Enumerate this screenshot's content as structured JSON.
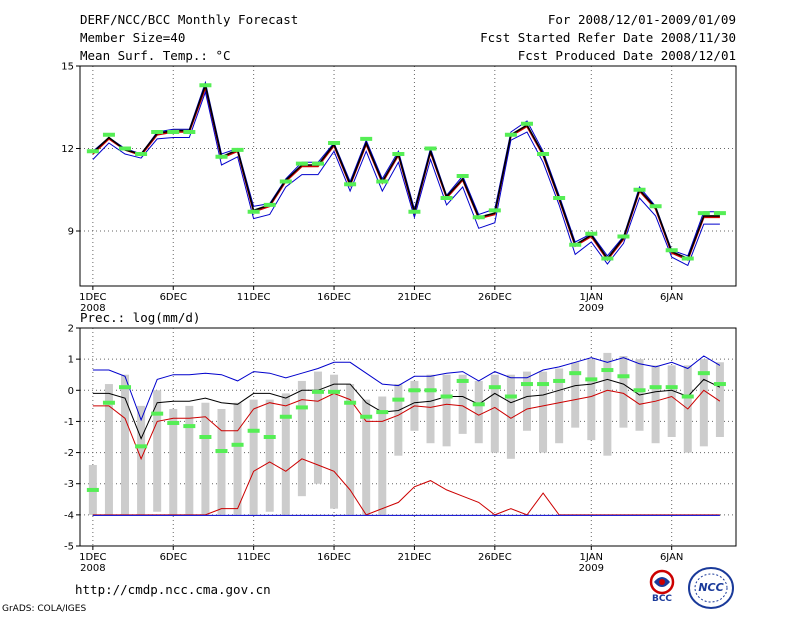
{
  "header": {
    "title": "DERF/NCC/BCC Monthly Forecast",
    "member_size": "Member Size=40",
    "variable": "Mean Surf. Temp.: °C",
    "period": "For 2008/12/01-2009/01/09",
    "started": "Fcst Started Refer Date 2008/11/30",
    "produced": "Fcst Produced Date 2008/12/01"
  },
  "lower_title": "Prec.: log(mm/d)",
  "footer": {
    "url": "http://cmdp.ncc.cma.gov.cn",
    "credit": "GrADS: COLA/IGES",
    "logo1_text": "BCC",
    "logo2_text": "NCC"
  },
  "colors": {
    "box": "#cccccc",
    "mean": "#000000",
    "upper": "#0000cc",
    "lower": "#cc0000",
    "marker": "#55ee55",
    "grid": "#666666"
  },
  "chart_data": [
    {
      "type": "line",
      "title": "Mean Surf. Temp.: °C",
      "x": [
        1,
        2,
        3,
        4,
        5,
        6,
        7,
        8,
        9,
        10,
        11,
        12,
        13,
        14,
        15,
        16,
        17,
        18,
        19,
        20,
        21,
        22,
        23,
        24,
        25,
        26,
        27,
        28,
        29,
        30,
        31,
        32,
        33,
        34,
        35,
        36,
        37,
        38,
        39,
        40
      ],
      "x_ticks": [
        1,
        6,
        11,
        16,
        21,
        26,
        32,
        37
      ],
      "x_tick_labels": [
        "1DEC",
        "6DEC",
        "11DEC",
        "16DEC",
        "21DEC",
        "26DEC",
        "1JAN",
        "6JAN"
      ],
      "x_year_labels": [
        {
          "x": 1,
          "label": "2008"
        },
        {
          "x": 32,
          "label": "2009"
        }
      ],
      "xlim": [
        0.2,
        41
      ],
      "ylim": [
        7.0,
        15.0
      ],
      "y_ticks": [
        9,
        12,
        15
      ],
      "grid": true,
      "series": [
        {
          "name": "ensemble max",
          "values": [
            11.9,
            12.4,
            12.0,
            11.8,
            12.6,
            12.7,
            12.7,
            14.4,
            11.8,
            12.0,
            9.9,
            10.0,
            10.9,
            11.5,
            11.5,
            12.2,
            10.8,
            12.3,
            10.9,
            11.9,
            9.8,
            12.0,
            10.3,
            11.0,
            9.6,
            9.8,
            12.6,
            13.0,
            11.9,
            10.3,
            8.6,
            8.9,
            8.1,
            8.8,
            10.6,
            9.9,
            8.3,
            8.1,
            9.7,
            9.7
          ]
        },
        {
          "name": "ensemble mean",
          "values": [
            11.8,
            12.35,
            11.95,
            11.75,
            12.5,
            12.6,
            12.6,
            14.2,
            11.65,
            11.9,
            9.7,
            9.9,
            10.8,
            11.35,
            11.35,
            12.1,
            10.65,
            12.15,
            10.75,
            11.75,
            9.65,
            11.85,
            10.2,
            10.85,
            9.45,
            9.6,
            12.45,
            12.8,
            11.75,
            10.15,
            8.45,
            8.8,
            7.95,
            8.7,
            10.45,
            9.8,
            8.2,
            7.95,
            9.5,
            9.5
          ]
        },
        {
          "name": "ensemble min",
          "values": [
            11.6,
            12.2,
            11.8,
            11.65,
            12.35,
            12.4,
            12.4,
            14.05,
            11.4,
            11.7,
            9.45,
            9.6,
            10.6,
            11.05,
            11.05,
            11.9,
            10.45,
            11.9,
            10.45,
            11.5,
            9.5,
            11.6,
            9.95,
            10.6,
            9.1,
            9.3,
            12.3,
            12.6,
            11.5,
            9.95,
            8.15,
            8.6,
            7.8,
            8.55,
            10.2,
            9.55,
            8.05,
            7.75,
            9.25,
            9.25
          ]
        },
        {
          "name": "member",
          "values": [
            11.85,
            12.4,
            11.95,
            11.8,
            12.55,
            12.65,
            12.65,
            14.3,
            11.7,
            11.95,
            9.75,
            9.95,
            10.85,
            11.4,
            11.4,
            12.15,
            10.7,
            12.2,
            10.8,
            11.8,
            9.7,
            11.9,
            10.25,
            10.9,
            9.5,
            9.65,
            12.5,
            12.85,
            11.8,
            10.2,
            8.5,
            8.85,
            8.0,
            8.75,
            10.5,
            9.85,
            8.25,
            8.0,
            9.55,
            9.55
          ]
        }
      ],
      "markers": [
        11.9,
        12.5,
        12.0,
        11.8,
        12.6,
        12.6,
        12.6,
        14.3,
        11.7,
        11.95,
        9.7,
        9.95,
        10.8,
        11.45,
        11.45,
        12.2,
        10.7,
        12.35,
        10.8,
        11.8,
        9.7,
        12.0,
        10.2,
        11.0,
        9.5,
        9.75,
        12.5,
        12.9,
        11.8,
        10.2,
        8.5,
        8.9,
        8.0,
        8.8,
        10.5,
        9.9,
        8.3,
        8.0,
        9.65,
        9.65
      ]
    },
    {
      "type": "line",
      "title": "Prec.: log(mm/d)",
      "x": [
        1,
        2,
        3,
        4,
        5,
        6,
        7,
        8,
        9,
        10,
        11,
        12,
        13,
        14,
        15,
        16,
        17,
        18,
        19,
        20,
        21,
        22,
        23,
        24,
        25,
        26,
        27,
        28,
        29,
        30,
        31,
        32,
        33,
        34,
        35,
        36,
        37,
        38,
        39,
        40
      ],
      "x_ticks": [
        1,
        6,
        11,
        16,
        21,
        26,
        32,
        37
      ],
      "x_tick_labels": [
        "1DEC",
        "6DEC",
        "11DEC",
        "16DEC",
        "21DEC",
        "26DEC",
        "1JAN",
        "6JAN"
      ],
      "x_year_labels": [
        {
          "x": 1,
          "label": "2008"
        },
        {
          "x": 32,
          "label": "2009"
        }
      ],
      "xlim": [
        0.2,
        41
      ],
      "ylim": [
        -5,
        2
      ],
      "y_ticks": [
        -5,
        -4,
        -3,
        -2,
        -1,
        0,
        1,
        2
      ],
      "grid": true,
      "boxes": {
        "high": [
          -2.4,
          0.2,
          0.5,
          -0.5,
          0.0,
          -0.6,
          -0.5,
          -0.4,
          -0.6,
          -0.4,
          -0.3,
          -0.3,
          -0.1,
          0.3,
          0.6,
          0.5,
          0.2,
          -0.3,
          -0.2,
          0.2,
          0.3,
          0.5,
          0.5,
          0.5,
          0.3,
          0.5,
          0.5,
          0.6,
          0.6,
          0.7,
          0.9,
          1.0,
          1.2,
          1.1,
          1.0,
          0.8,
          0.8,
          0.8,
          1.0,
          0.9
        ],
        "low": [
          -4.0,
          -4.0,
          -4.0,
          -4.0,
          -3.9,
          -4.0,
          -4.0,
          -4.0,
          -4.0,
          -4.0,
          -4.0,
          -3.9,
          -4.0,
          -3.4,
          -3.0,
          -3.8,
          -4.0,
          -4.0,
          -4.0,
          -2.1,
          -1.3,
          -1.7,
          -1.8,
          -1.4,
          -1.7,
          -2.0,
          -2.2,
          -1.3,
          -2.0,
          -1.7,
          -1.2,
          -1.6,
          -2.1,
          -1.2,
          -1.3,
          -1.7,
          -1.5,
          -2.0,
          -1.8,
          -1.5
        ]
      },
      "series": [
        {
          "name": "upper",
          "values": [
            0.65,
            0.65,
            0.45,
            -0.95,
            0.35,
            0.5,
            0.5,
            0.55,
            0.5,
            0.3,
            0.6,
            0.55,
            0.4,
            0.55,
            0.7,
            0.9,
            0.9,
            0.55,
            0.2,
            0.15,
            0.45,
            0.45,
            0.55,
            0.6,
            0.3,
            0.6,
            0.4,
            0.4,
            0.65,
            0.75,
            0.9,
            1.05,
            0.9,
            1.05,
            0.85,
            0.75,
            0.9,
            0.7,
            1.1,
            0.8
          ]
        },
        {
          "name": "mean",
          "values": [
            -0.1,
            -0.1,
            -0.25,
            -1.55,
            -0.4,
            -0.35,
            -0.35,
            -0.25,
            -0.4,
            -0.45,
            -0.1,
            -0.1,
            -0.25,
            0.0,
            0.0,
            0.2,
            0.2,
            -0.4,
            -0.7,
            -0.65,
            -0.4,
            -0.35,
            -0.2,
            -0.2,
            -0.45,
            -0.1,
            -0.4,
            -0.2,
            -0.15,
            0.0,
            0.15,
            0.2,
            0.35,
            0.2,
            -0.15,
            -0.05,
            0.0,
            -0.2,
            0.35,
            0.1
          ]
        },
        {
          "name": "lower",
          "values": [
            -0.5,
            -0.5,
            -0.9,
            -2.2,
            -1.0,
            -0.9,
            -0.9,
            -0.85,
            -1.3,
            -1.3,
            -0.6,
            -0.4,
            -0.5,
            -0.3,
            -0.35,
            -0.1,
            -0.3,
            -1.0,
            -1.0,
            -0.8,
            -0.5,
            -0.55,
            -0.45,
            -0.5,
            -0.8,
            -0.55,
            -0.9,
            -0.6,
            -0.5,
            -0.4,
            -0.3,
            -0.2,
            0.0,
            -0.1,
            -0.45,
            -0.35,
            -0.2,
            -0.6,
            0.0,
            -0.35
          ]
        },
        {
          "name": "minimum",
          "values": [
            -4.0,
            -4.0,
            -4.0,
            -4.0,
            -4.0,
            -4.0,
            -4.0,
            -4.0,
            -3.8,
            -3.8,
            -2.6,
            -2.3,
            -2.6,
            -2.2,
            -2.4,
            -2.6,
            -3.2,
            -4.0,
            -3.8,
            -3.6,
            -3.1,
            -2.9,
            -3.2,
            -3.4,
            -3.6,
            -4.0,
            -3.8,
            -4.0,
            -3.3,
            -4.0,
            -4.0,
            -4.0,
            -4.0,
            -4.0,
            -4.0,
            -4.0,
            -4.0,
            -4.0,
            -4.0,
            -4.0
          ]
        }
      ],
      "markers": [
        -3.2,
        -0.4,
        0.1,
        -1.8,
        -0.75,
        -1.05,
        -1.15,
        -1.5,
        -1.95,
        -1.75,
        -1.3,
        -1.5,
        -0.85,
        -0.55,
        -0.05,
        -0.05,
        -0.4,
        -0.85,
        -0.7,
        -0.3,
        0.0,
        0.0,
        -0.2,
        0.3,
        -0.45,
        0.1,
        -0.2,
        0.2,
        0.2,
        0.3,
        0.55,
        0.35,
        0.65,
        0.45,
        0.0,
        0.1,
        0.1,
        -0.2,
        0.55,
        0.2
      ]
    }
  ]
}
